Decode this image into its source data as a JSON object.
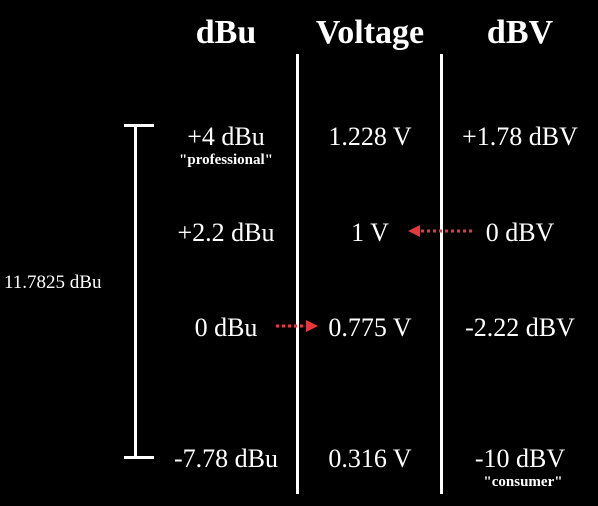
{
  "headers": {
    "dbu": "dBu",
    "voltage": "Voltage",
    "dbv": "dBV"
  },
  "rows": [
    {
      "dbu": "+4 dBu",
      "voltage": "1.228 V",
      "dbv": "+1.78 dBV",
      "dbu_note": "\"professional\""
    },
    {
      "dbu": "+2.2 dBu",
      "voltage": "1 V",
      "dbv": "0 dBV"
    },
    {
      "dbu": "0 dBu",
      "voltage": "0.775 V",
      "dbv": "-2.22 dBV"
    },
    {
      "dbu": "-7.78 dBu",
      "voltage": "0.316 V",
      "dbv": "-10 dBV",
      "dbv_note": "\"consumer\""
    }
  ],
  "range_label": "11.7825 dBu",
  "colors": {
    "background": "#000000",
    "text": "#ffffff",
    "arrow": "#e8383b"
  }
}
